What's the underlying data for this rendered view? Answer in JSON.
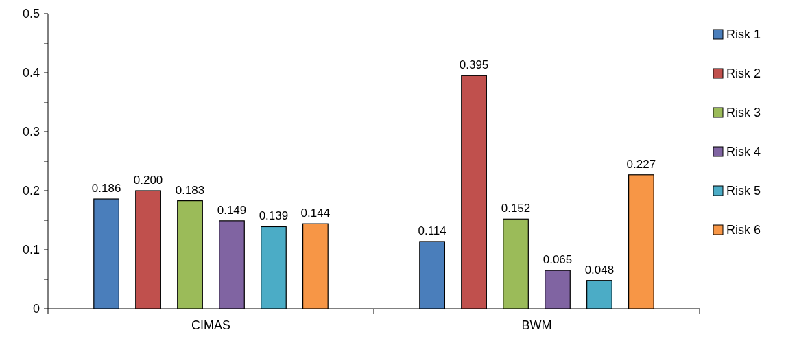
{
  "chart_data": {
    "type": "bar",
    "categories": [
      "CIMAS",
      "BWM"
    ],
    "series": [
      {
        "name": "Risk 1",
        "color": "#4a7ebb",
        "values": [
          0.186,
          0.114
        ],
        "value_labels": [
          "0.186",
          "0.114"
        ]
      },
      {
        "name": "Risk 2",
        "color": "#c0504d",
        "values": [
          0.2,
          0.395
        ],
        "value_labels": [
          "0.200",
          "0.395"
        ]
      },
      {
        "name": "Risk 3",
        "color": "#9bbb59",
        "values": [
          0.183,
          0.152
        ],
        "value_labels": [
          "0.183",
          "0.152"
        ]
      },
      {
        "name": "Risk 4",
        "color": "#8064a2",
        "values": [
          0.149,
          0.065
        ],
        "value_labels": [
          "0.149",
          "0.065"
        ]
      },
      {
        "name": "Risk 5",
        "color": "#4bacc6",
        "values": [
          0.139,
          0.048
        ],
        "value_labels": [
          "0.139",
          "0.048"
        ]
      },
      {
        "name": "Risk 6",
        "color": "#f79646",
        "values": [
          0.144,
          0.227
        ],
        "value_labels": [
          "0.144",
          "0.227"
        ]
      }
    ],
    "ylim": [
      0,
      0.5
    ],
    "yticks": [
      0,
      {
        "value": 0.05,
        "label": null
      },
      0.1,
      {
        "value": 0.15,
        "label": null
      },
      0.2,
      {
        "value": 0.25,
        "label": null
      },
      0.3,
      {
        "value": 0.35,
        "label": null
      },
      0.4,
      {
        "value": 0.45,
        "label": null
      },
      0.5
    ],
    "grid": false,
    "legend": "right"
  }
}
